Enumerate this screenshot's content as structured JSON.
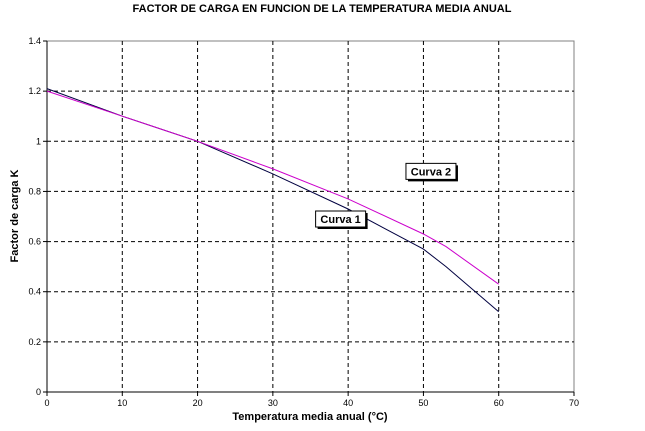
{
  "chart_data": {
    "type": "line",
    "title": "FACTOR DE CARGA EN FUNCION DE LA TEMPERATURA MEDIA ANUAL",
    "xlabel": "Temperatura media anual (°C)",
    "ylabel": "Factor de carga K",
    "xlim": [
      0,
      70
    ],
    "ylim": [
      0,
      1.4
    ],
    "xticks": [
      0,
      10,
      20,
      30,
      40,
      50,
      60,
      70
    ],
    "xtick_labels": [
      "0",
      "10",
      "20",
      "30",
      "40",
      "50",
      "60",
      "70"
    ],
    "yticks": [
      0,
      0.2,
      0.4,
      0.6,
      0.8,
      1.0,
      1.2,
      1.4
    ],
    "ytick_labels": [
      "0",
      "0.2",
      "0.4",
      "0.6",
      "0.8",
      "1",
      "1.2",
      "1.4"
    ],
    "grid": true,
    "series": [
      {
        "name": "Curva 1",
        "color": "#000040",
        "x": [
          0,
          10,
          20,
          30,
          40,
          50,
          53,
          60
        ],
        "y": [
          1.21,
          1.1,
          1.0,
          0.87,
          0.73,
          0.57,
          0.5,
          0.32
        ]
      },
      {
        "name": "Curva 2",
        "color": "#cc00cc",
        "x": [
          0,
          10,
          20,
          30,
          40,
          50,
          53,
          60
        ],
        "y": [
          1.2,
          1.1,
          1.0,
          0.89,
          0.77,
          0.63,
          0.58,
          0.43
        ]
      }
    ],
    "annotations": [
      {
        "text": "Curva 2",
        "series": "Curva 2",
        "x": 51,
        "y": 0.88
      },
      {
        "text": "Curva 1",
        "series": "Curva 1",
        "x": 39,
        "y": 0.69
      }
    ]
  }
}
